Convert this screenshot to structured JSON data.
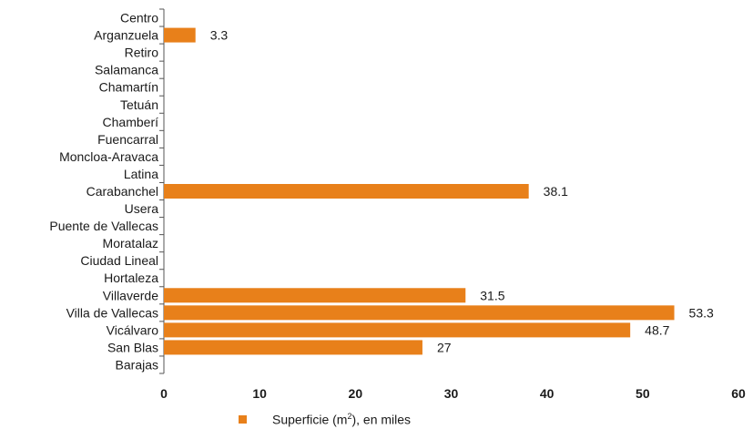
{
  "chart_data": {
    "type": "bar",
    "orientation": "horizontal",
    "categories": [
      "Centro",
      "Arganzuela",
      "Retiro",
      "Salamanca",
      "Chamartín",
      "Tetuán",
      "Chamberí",
      "Fuencarral",
      "Moncloa-Aravaca",
      "Latina",
      "Carabanchel",
      "Usera",
      "Puente de Vallecas",
      "Moratalaz",
      "Ciudad Lineal",
      "Hortaleza",
      "Villaverde",
      "Villa de Vallecas",
      "Vicálvaro",
      "San Blas",
      "Barajas"
    ],
    "series": [
      {
        "name": "Superficie (m2), en miles",
        "values": [
          null,
          3.3,
          null,
          null,
          null,
          null,
          null,
          null,
          null,
          null,
          38.1,
          null,
          null,
          null,
          null,
          null,
          31.5,
          53.3,
          48.7,
          27,
          null
        ],
        "labels": [
          null,
          "3.3",
          null,
          null,
          null,
          null,
          null,
          null,
          null,
          null,
          "38.1",
          null,
          null,
          null,
          null,
          null,
          "31.5",
          "53.3",
          "48.7",
          "27",
          null
        ]
      }
    ],
    "xlim": [
      0,
      60
    ],
    "xticks": [
      "0",
      "10",
      "20",
      "30",
      "40",
      "50",
      "60"
    ],
    "grid": false,
    "legend_position": "bottom",
    "bar_color": "#e8801a"
  },
  "legend": {
    "text_before": "Superficie (m",
    "superscript": "2",
    "text_after": "), en miles"
  }
}
